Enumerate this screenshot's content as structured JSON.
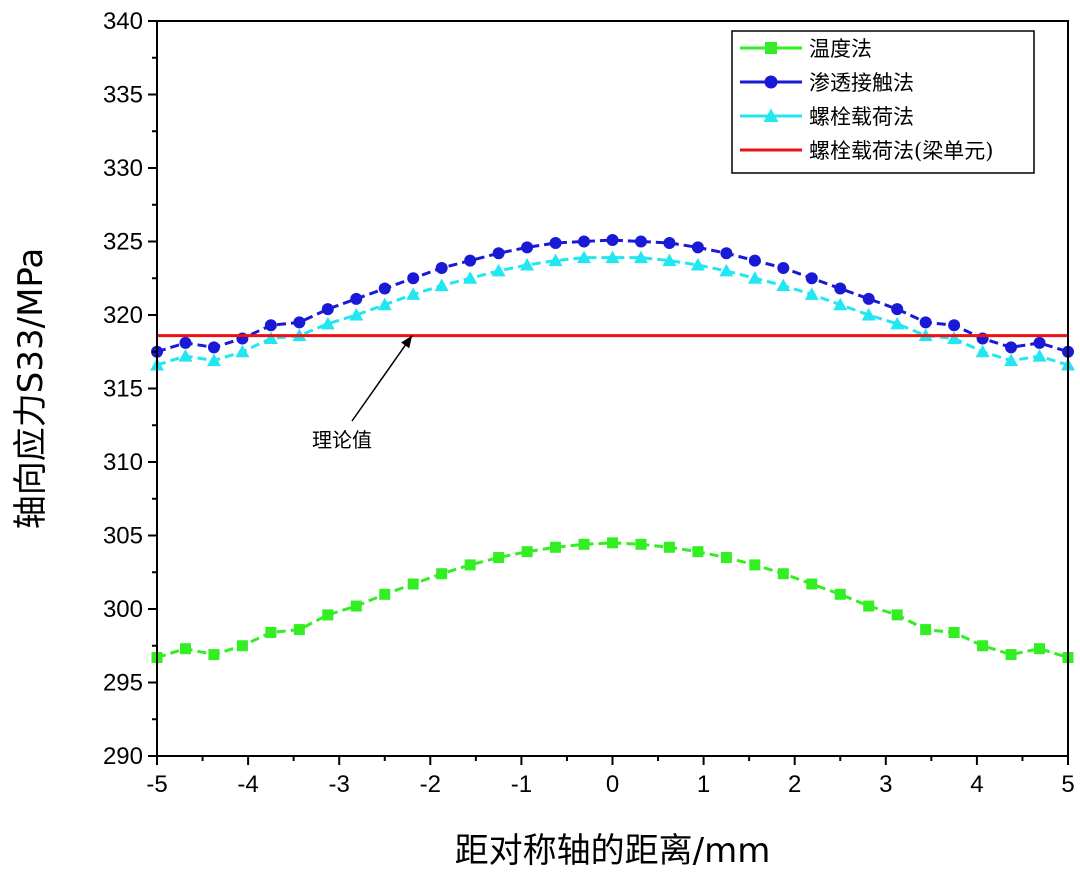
{
  "chart_data": {
    "type": "line",
    "xlabel": "距对称轴的距离/mm",
    "ylabel": "轴向应力S33/MPa",
    "xlim": [
      -5,
      5
    ],
    "ylim": [
      290,
      340
    ],
    "x_ticks": [
      -5,
      -4,
      -3,
      -2,
      -1,
      0,
      1,
      2,
      3,
      4,
      5
    ],
    "x_tick_labels": [
      "-5",
      "-4",
      "-3",
      "-2",
      "-1",
      "0",
      "1",
      "2",
      "3",
      "4",
      "5"
    ],
    "y_ticks": [
      290,
      295,
      300,
      305,
      310,
      315,
      320,
      325,
      330,
      335,
      340
    ],
    "y_tick_labels": [
      "290",
      "295",
      "300",
      "305",
      "310",
      "315",
      "320",
      "325",
      "330",
      "335",
      "340"
    ],
    "grid": false,
    "legend_position": "top-right",
    "x": [
      -5,
      -4.6875,
      -4.375,
      -4.0625,
      -3.75,
      -3.4375,
      -3.125,
      -2.8125,
      -2.5,
      -2.1875,
      -1.875,
      -1.5625,
      -1.25,
      -0.9375,
      -0.625,
      -0.3125,
      0,
      0.3125,
      0.625,
      0.9375,
      1.25,
      1.5625,
      1.875,
      2.1875,
      2.5,
      2.8125,
      3.125,
      3.4375,
      3.75,
      4.0625,
      4.375,
      4.6875,
      5
    ],
    "series": [
      {
        "name": "温度法",
        "color": "#33ee22",
        "marker": "square",
        "values": [
          296.7,
          297.3,
          296.9,
          297.5,
          298.4,
          298.6,
          299.6,
          300.2,
          301.0,
          301.7,
          302.4,
          303.0,
          303.5,
          303.9,
          304.2,
          304.4,
          304.5,
          304.4,
          304.2,
          303.9,
          303.5,
          303.0,
          302.4,
          301.7,
          301.0,
          300.2,
          299.6,
          298.6,
          298.4,
          297.5,
          296.9,
          297.3,
          296.7
        ]
      },
      {
        "name": "渗透接触法",
        "color": "#1a1ad6",
        "marker": "circle",
        "values": [
          317.5,
          318.1,
          317.8,
          318.4,
          319.3,
          319.5,
          320.4,
          321.1,
          321.8,
          322.5,
          323.2,
          323.7,
          324.2,
          324.6,
          324.9,
          325.0,
          325.1,
          325.0,
          324.9,
          324.6,
          324.2,
          323.7,
          323.2,
          322.5,
          321.8,
          321.1,
          320.4,
          319.5,
          319.3,
          318.4,
          317.8,
          318.1,
          317.5
        ]
      },
      {
        "name": "螺栓载荷法",
        "color": "#22e6f0",
        "marker": "triangle",
        "values": [
          316.6,
          317.2,
          316.9,
          317.5,
          318.4,
          318.6,
          319.4,
          320.0,
          320.7,
          321.4,
          322.0,
          322.5,
          323.0,
          323.4,
          323.7,
          323.9,
          323.9,
          323.9,
          323.7,
          323.4,
          323.0,
          322.5,
          322.0,
          321.4,
          320.7,
          320.0,
          319.4,
          318.6,
          318.4,
          317.5,
          316.9,
          317.2,
          316.6
        ]
      },
      {
        "name": "螺栓载荷法(梁单元)",
        "color": "#ee1111",
        "marker": "none",
        "constant_value": 318.6
      }
    ],
    "annotations": [
      {
        "text": "理论值",
        "arrow_to": {
          "x": -2.2,
          "y": 318.6
        }
      }
    ]
  }
}
